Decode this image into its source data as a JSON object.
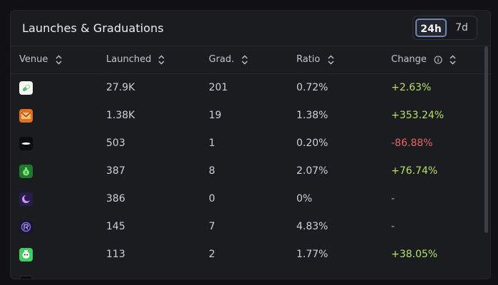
{
  "title": "Launches & Graduations",
  "range": {
    "options": [
      "24h",
      "7d"
    ],
    "selected": "24h"
  },
  "columns": [
    {
      "label": "Venue"
    },
    {
      "label": "Launched"
    },
    {
      "label": "Grad."
    },
    {
      "label": "Ratio"
    },
    {
      "label": "Change"
    }
  ],
  "rows": [
    {
      "venue_icon": "pill-logo-icon",
      "launched": "27.9K",
      "grad": "201",
      "ratio": "0.72%",
      "change": "+2.63%",
      "trend": "up"
    },
    {
      "venue_icon": "orange-envelope-logo-icon",
      "launched": "1.38K",
      "grad": "19",
      "ratio": "1.38%",
      "change": "+353.24%",
      "trend": "up"
    },
    {
      "venue_icon": "white-swoosh-logo-icon",
      "launched": "503",
      "grad": "1",
      "ratio": "0.20%",
      "change": "-86.88%",
      "trend": "down"
    },
    {
      "venue_icon": "green-moneybag-logo-icon",
      "launched": "387",
      "grad": "8",
      "ratio": "2.07%",
      "change": "+76.74%",
      "trend": "up"
    },
    {
      "venue_icon": "purple-moon-logo-icon",
      "launched": "386",
      "grad": "0",
      "ratio": "0%",
      "change": "-",
      "trend": "none"
    },
    {
      "venue_icon": "purple-badge-logo-icon",
      "launched": "145",
      "grad": "7",
      "ratio": "4.83%",
      "change": "-",
      "trend": "none"
    },
    {
      "venue_icon": "green-character-logo-icon",
      "launched": "113",
      "grad": "2",
      "ratio": "1.77%",
      "change": "+38.05%",
      "trend": "up"
    }
  ],
  "colors": {
    "positive": "#b7e06a",
    "negative": "#e86464",
    "accent": "#6f86b4"
  }
}
